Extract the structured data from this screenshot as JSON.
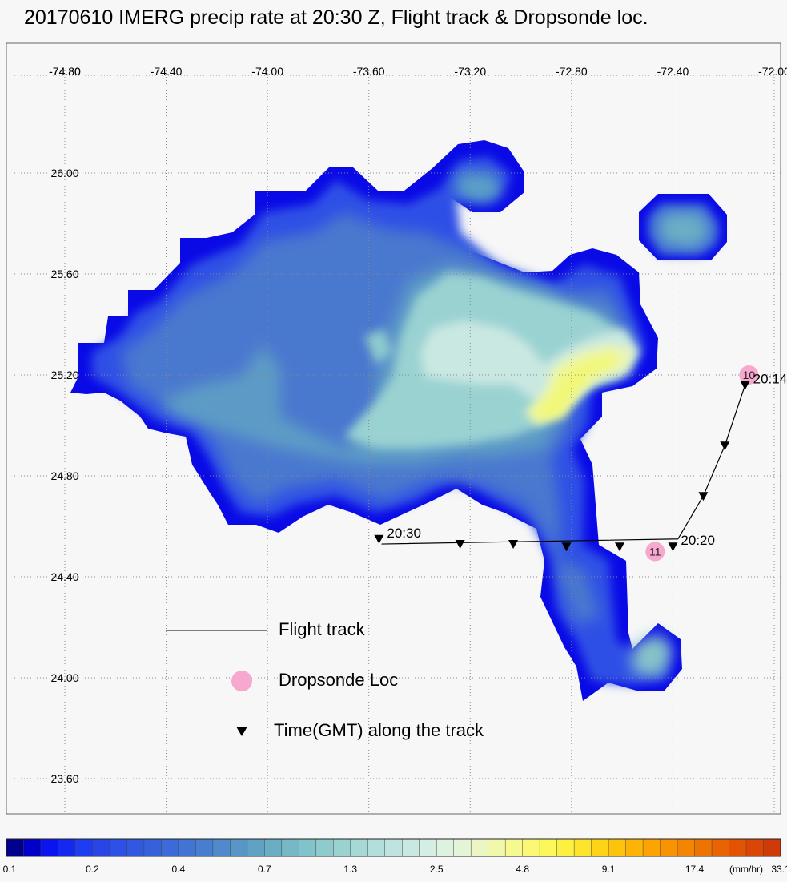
{
  "title": "20170610 IMERG precip rate at 20:30 Z, Flight track & Dropsonde loc.",
  "map": {
    "lon_ticks": [
      "-74.80",
      "-74.40",
      "-74.00",
      "-73.60",
      "-73.20",
      "-72.80",
      "-72.40",
      "-72.00"
    ],
    "lat_ticks": [
      "26.00",
      "25.60",
      "25.20",
      "24.80",
      "24.40",
      "24.00",
      "23.60"
    ],
    "lon_range": [
      -74.85,
      -72.0
    ],
    "lat_range": [
      23.55,
      26.25
    ]
  },
  "legend": {
    "track_label": "Flight track",
    "sonde_label": "Dropsonde Loc",
    "time_label": "Time(GMT) along the track"
  },
  "flight_track": {
    "points": [
      {
        "lon": -72.115,
        "lat": 25.16
      },
      {
        "lon": -72.195,
        "lat": 24.92
      },
      {
        "lon": -72.28,
        "lat": 24.72
      },
      {
        "lon": -72.38,
        "lat": 24.55
      },
      {
        "lon": -73.55,
        "lat": 24.53
      }
    ],
    "time_markers": [
      {
        "lon": -72.115,
        "lat": 25.16,
        "label": "20:14"
      },
      {
        "lon": -72.195,
        "lat": 24.92,
        "label": ""
      },
      {
        "lon": -72.28,
        "lat": 24.72,
        "label": ""
      },
      {
        "lon": -72.4,
        "lat": 24.52,
        "label": "20:20"
      },
      {
        "lon": -72.61,
        "lat": 24.52,
        "label": ""
      },
      {
        "lon": -72.82,
        "lat": 24.52,
        "label": ""
      },
      {
        "lon": -73.03,
        "lat": 24.53,
        "label": ""
      },
      {
        "lon": -73.24,
        "lat": 24.53,
        "label": ""
      },
      {
        "lon": -73.56,
        "lat": 24.55,
        "label": "20:30"
      }
    ]
  },
  "dropsondes": [
    {
      "id": "10",
      "lon": -72.1,
      "lat": 25.2
    },
    {
      "id": "11",
      "lon": -72.47,
      "lat": 24.5
    }
  ],
  "colorbar": {
    "unit": "(mm/hr)",
    "tick_labels": [
      "0.1",
      "0.2",
      "0.4",
      "0.7",
      "1.3",
      "2.5",
      "4.8",
      "9.1",
      "17.4",
      "33.1"
    ],
    "colors": [
      "#00008c",
      "#0000c8",
      "#0a14f0",
      "#1428f0",
      "#1e3cf0",
      "#2846e8",
      "#2d50e6",
      "#3258e0",
      "#3660dc",
      "#3c6ad8",
      "#4274d4",
      "#487ed0",
      "#508acc",
      "#5896c8",
      "#60a2c4",
      "#6aaec4",
      "#76b8c6",
      "#82c2ca",
      "#8ecace",
      "#9ad2d2",
      "#a6d8d6",
      "#b2dedc",
      "#bee4e0",
      "#cae8e2",
      "#d4eee4",
      "#ddf2e0",
      "#e4f4d6",
      "#ecf6c4",
      "#f2f8aa",
      "#f6f890",
      "#faf874",
      "#fcf85a",
      "#fef040",
      "#fee42a",
      "#fed418",
      "#fec40c",
      "#feb406",
      "#fca404",
      "#f89402",
      "#f48402",
      "#ee7402",
      "#e86402",
      "#e25404",
      "#da4606",
      "#d03a08"
    ]
  },
  "chart_data": {
    "type": "map",
    "title": "20170610 IMERG precip rate at 20:30 Z, Flight track & Dropsonde loc.",
    "xlim": [
      -74.85,
      -72.0
    ],
    "ylim": [
      23.55,
      26.25
    ],
    "field_unit": "mm/hr",
    "colorbar_levels": [
      "0.1",
      "0.2",
      "0.4",
      "0.7",
      "1.3",
      "2.5",
      "4.8",
      "9.1",
      "17.4",
      "33.1"
    ],
    "grid": true
  }
}
